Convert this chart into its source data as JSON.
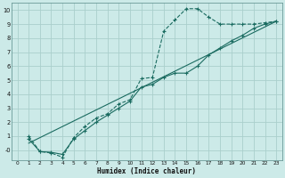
{
  "xlabel": "Humidex (Indice chaleur)",
  "ylabel": "",
  "bg_color": "#cceae8",
  "grid_color": "#aacfcc",
  "line_color": "#1a6b60",
  "xlim": [
    -0.5,
    23.5
  ],
  "ylim": [
    -0.7,
    10.5
  ],
  "xticks": [
    0,
    1,
    2,
    3,
    4,
    5,
    6,
    7,
    8,
    9,
    10,
    11,
    12,
    13,
    14,
    15,
    16,
    17,
    18,
    19,
    20,
    21,
    22,
    23
  ],
  "yticks": [
    0,
    1,
    2,
    3,
    4,
    5,
    6,
    7,
    8,
    9,
    10
  ],
  "ytick_labels": [
    "-0",
    "1",
    "2",
    "3",
    "4",
    "5",
    "6",
    "7",
    "8",
    "9",
    "10"
  ],
  "line1_x": [
    1,
    2,
    3,
    4,
    5,
    6,
    7,
    8,
    9,
    10,
    11,
    12,
    13,
    14,
    15,
    16,
    17,
    18,
    19,
    20,
    21,
    22,
    23
  ],
  "line1_y": [
    1.0,
    -0.1,
    -0.2,
    -0.5,
    0.9,
    1.7,
    2.3,
    2.6,
    3.3,
    3.6,
    5.1,
    5.2,
    8.5,
    9.3,
    10.1,
    10.1,
    9.5,
    9.0,
    9.0,
    9.0,
    9.0,
    9.1,
    9.2
  ],
  "line2_x": [
    1,
    2,
    3,
    4,
    5,
    6,
    7,
    8,
    9,
    10,
    11,
    12,
    13,
    14,
    15,
    16,
    17,
    18,
    19,
    20,
    21,
    22,
    23
  ],
  "line2_y": [
    0.8,
    -0.1,
    -0.15,
    -0.3,
    0.8,
    1.4,
    2.0,
    2.5,
    3.0,
    3.5,
    4.5,
    4.7,
    5.2,
    5.5,
    5.5,
    6.0,
    6.8,
    7.3,
    7.8,
    8.2,
    8.7,
    9.0,
    9.2
  ],
  "line3_x": [
    1,
    23
  ],
  "line3_y": [
    0.5,
    9.2
  ]
}
